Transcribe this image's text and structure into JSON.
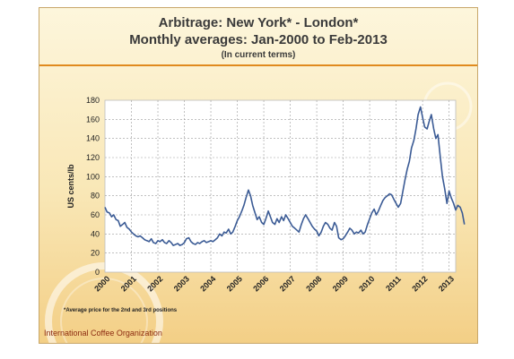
{
  "slide": {
    "title_line1": "Arbitrage: New York* - London*",
    "title_line2": "Monthly averages: Jan-2000 to Feb-2013",
    "subtitle": "(In current terms)",
    "footnote": "*Average price for the 2nd and 3rd positions",
    "footer": "International Coffee Organization"
  },
  "colors": {
    "line": "#3b5b95",
    "rule": "#e08a1e",
    "footer": "#8b2a10",
    "grid": "#9a9a9a"
  },
  "chart_data": {
    "type": "line",
    "title": "Arbitrage: New York* - London*",
    "subtitle": "Monthly averages: Jan-2000 to Feb-2013",
    "xlabel": "",
    "ylabel": "US cents/lb",
    "ylim": [
      0,
      180
    ],
    "yticks": [
      0,
      20,
      40,
      60,
      80,
      100,
      120,
      140,
      160,
      180
    ],
    "xlim": [
      2000,
      2013.25
    ],
    "xticks": [
      "2000",
      "2001",
      "2002",
      "2003",
      "2004",
      "2005",
      "2006",
      "2007",
      "2008",
      "2009",
      "2010",
      "2011",
      "2012",
      "2013"
    ],
    "grid": true,
    "legend": "none",
    "series": [
      {
        "values": [
          [
            2000.0,
            68
          ],
          [
            2000.08,
            63
          ],
          [
            2000.17,
            62
          ],
          [
            2000.25,
            58
          ],
          [
            2000.33,
            60
          ],
          [
            2000.42,
            55
          ],
          [
            2000.5,
            54
          ],
          [
            2000.58,
            48
          ],
          [
            2000.67,
            50
          ],
          [
            2000.75,
            52
          ],
          [
            2000.83,
            47
          ],
          [
            2000.92,
            45
          ],
          [
            2001.0,
            42
          ],
          [
            2001.08,
            40
          ],
          [
            2001.17,
            38
          ],
          [
            2001.25,
            37
          ],
          [
            2001.33,
            38
          ],
          [
            2001.42,
            36
          ],
          [
            2001.5,
            34
          ],
          [
            2001.58,
            33
          ],
          [
            2001.67,
            32
          ],
          [
            2001.75,
            35
          ],
          [
            2001.83,
            31
          ],
          [
            2001.92,
            30
          ],
          [
            2002.0,
            33
          ],
          [
            2002.08,
            32
          ],
          [
            2002.17,
            34
          ],
          [
            2002.25,
            31
          ],
          [
            2002.33,
            30
          ],
          [
            2002.42,
            33
          ],
          [
            2002.5,
            31
          ],
          [
            2002.58,
            28
          ],
          [
            2002.67,
            29
          ],
          [
            2002.75,
            30
          ],
          [
            2002.83,
            28
          ],
          [
            2002.92,
            29
          ],
          [
            2003.0,
            31
          ],
          [
            2003.08,
            35
          ],
          [
            2003.17,
            36
          ],
          [
            2003.25,
            32
          ],
          [
            2003.33,
            30
          ],
          [
            2003.42,
            29
          ],
          [
            2003.5,
            31
          ],
          [
            2003.58,
            30
          ],
          [
            2003.67,
            32
          ],
          [
            2003.75,
            33
          ],
          [
            2003.83,
            31
          ],
          [
            2003.92,
            32
          ],
          [
            2004.0,
            33
          ],
          [
            2004.08,
            32
          ],
          [
            2004.17,
            34
          ],
          [
            2004.25,
            36
          ],
          [
            2004.33,
            40
          ],
          [
            2004.42,
            38
          ],
          [
            2004.5,
            42
          ],
          [
            2004.58,
            41
          ],
          [
            2004.67,
            45
          ],
          [
            2004.75,
            40
          ],
          [
            2004.83,
            42
          ],
          [
            2004.92,
            48
          ],
          [
            2005.0,
            54
          ],
          [
            2005.08,
            58
          ],
          [
            2005.17,
            64
          ],
          [
            2005.25,
            70
          ],
          [
            2005.33,
            78
          ],
          [
            2005.42,
            86
          ],
          [
            2005.5,
            80
          ],
          [
            2005.58,
            70
          ],
          [
            2005.67,
            62
          ],
          [
            2005.75,
            55
          ],
          [
            2005.83,
            58
          ],
          [
            2005.92,
            52
          ],
          [
            2006.0,
            50
          ],
          [
            2006.08,
            56
          ],
          [
            2006.17,
            64
          ],
          [
            2006.25,
            58
          ],
          [
            2006.33,
            52
          ],
          [
            2006.42,
            50
          ],
          [
            2006.5,
            56
          ],
          [
            2006.58,
            52
          ],
          [
            2006.67,
            58
          ],
          [
            2006.75,
            54
          ],
          [
            2006.83,
            60
          ],
          [
            2006.92,
            56
          ],
          [
            2007.0,
            52
          ],
          [
            2007.08,
            48
          ],
          [
            2007.17,
            46
          ],
          [
            2007.25,
            44
          ],
          [
            2007.33,
            42
          ],
          [
            2007.42,
            50
          ],
          [
            2007.5,
            56
          ],
          [
            2007.58,
            60
          ],
          [
            2007.67,
            56
          ],
          [
            2007.75,
            52
          ],
          [
            2007.83,
            48
          ],
          [
            2007.92,
            45
          ],
          [
            2008.0,
            43
          ],
          [
            2008.08,
            38
          ],
          [
            2008.17,
            42
          ],
          [
            2008.25,
            48
          ],
          [
            2008.33,
            52
          ],
          [
            2008.42,
            50
          ],
          [
            2008.5,
            46
          ],
          [
            2008.58,
            44
          ],
          [
            2008.67,
            52
          ],
          [
            2008.75,
            48
          ],
          [
            2008.83,
            36
          ],
          [
            2008.92,
            34
          ],
          [
            2009.0,
            35
          ],
          [
            2009.08,
            38
          ],
          [
            2009.17,
            42
          ],
          [
            2009.25,
            46
          ],
          [
            2009.33,
            44
          ],
          [
            2009.42,
            40
          ],
          [
            2009.5,
            42
          ],
          [
            2009.58,
            41
          ],
          [
            2009.67,
            44
          ],
          [
            2009.75,
            40
          ],
          [
            2009.83,
            42
          ],
          [
            2009.92,
            50
          ],
          [
            2010.0,
            56
          ],
          [
            2010.08,
            62
          ],
          [
            2010.17,
            66
          ],
          [
            2010.25,
            60
          ],
          [
            2010.33,
            64
          ],
          [
            2010.42,
            70
          ],
          [
            2010.5,
            75
          ],
          [
            2010.58,
            78
          ],
          [
            2010.67,
            80
          ],
          [
            2010.75,
            82
          ],
          [
            2010.83,
            81
          ],
          [
            2010.92,
            76
          ],
          [
            2011.0,
            72
          ],
          [
            2011.08,
            68
          ],
          [
            2011.17,
            72
          ],
          [
            2011.25,
            84
          ],
          [
            2011.33,
            96
          ],
          [
            2011.42,
            108
          ],
          [
            2011.5,
            116
          ],
          [
            2011.58,
            130
          ],
          [
            2011.67,
            138
          ],
          [
            2011.75,
            150
          ],
          [
            2011.83,
            165
          ],
          [
            2011.92,
            173
          ],
          [
            2012.0,
            162
          ],
          [
            2012.08,
            152
          ],
          [
            2012.17,
            150
          ],
          [
            2012.25,
            158
          ],
          [
            2012.33,
            165
          ],
          [
            2012.42,
            150
          ],
          [
            2012.5,
            140
          ],
          [
            2012.58,
            144
          ],
          [
            2012.67,
            120
          ],
          [
            2012.75,
            100
          ],
          [
            2012.83,
            88
          ],
          [
            2012.92,
            72
          ],
          [
            2013.0,
            85
          ],
          [
            2013.08,
            78
          ],
          [
            2013.17,
            72
          ],
          [
            2013.25,
            65
          ],
          [
            2013.33,
            70
          ],
          [
            2013.42,
            68
          ],
          [
            2013.5,
            62
          ],
          [
            2013.58,
            50
          ]
        ]
      }
    ]
  }
}
